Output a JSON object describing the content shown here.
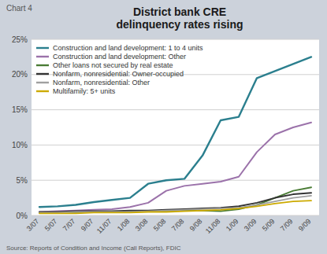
{
  "chart_data": {
    "type": "line",
    "title": "District bank CRE\ndelinquency rates rising",
    "annotations": [
      "Chart 4",
      "Source: Reports of Condition and Income (Call Reports), FDIC"
    ],
    "categories": [
      "3/07",
      "5/07",
      "7/07",
      "9/07",
      "11/07",
      "1/08",
      "3/08",
      "5/08",
      "7/08",
      "9/08",
      "11/08",
      "1/09",
      "3/09",
      "5/09",
      "7/09",
      "9/09"
    ],
    "series": [
      {
        "name": "Construction and land development: 1 to 4 units",
        "color": "#2b7f8e",
        "values": [
          1.2,
          1.3,
          1.5,
          1.9,
          2.2,
          2.5,
          4.5,
          5.0,
          5.2,
          8.5,
          13.5,
          14.0,
          19.5,
          20.5,
          21.5,
          22.5
        ]
      },
      {
        "name": "Construction and land development: Other",
        "color": "#9b72aa",
        "values": [
          0.5,
          0.6,
          0.7,
          0.8,
          0.9,
          1.2,
          1.8,
          3.5,
          4.2,
          4.5,
          4.8,
          5.5,
          9.0,
          11.5,
          12.5,
          13.2
        ]
      },
      {
        "name": "Other loans not secured by real estate",
        "color": "#4a7c35",
        "values": [
          0.4,
          0.4,
          0.4,
          0.5,
          0.5,
          0.5,
          0.6,
          0.7,
          0.7,
          0.7,
          0.6,
          0.9,
          1.5,
          2.5,
          3.5,
          4.0
        ]
      },
      {
        "name": "Nonfarm, nonresidential: Owner-occupied",
        "color": "#333333",
        "values": [
          0.5,
          0.5,
          0.6,
          0.6,
          0.6,
          0.7,
          0.7,
          0.8,
          0.9,
          1.0,
          1.1,
          1.3,
          1.8,
          2.5,
          3.0,
          3.2
        ]
      },
      {
        "name": "Nonfarm, nonresidential: Other",
        "color": "#a0a0a0",
        "values": [
          0.4,
          0.4,
          0.5,
          0.5,
          0.5,
          0.5,
          0.6,
          0.7,
          0.8,
          0.9,
          1.0,
          1.1,
          1.5,
          2.0,
          2.5,
          2.8
        ]
      },
      {
        "name": "Multifamily: 5+ units",
        "color": "#ccaa00",
        "values": [
          0.3,
          0.3,
          0.3,
          0.4,
          0.4,
          0.4,
          0.5,
          0.5,
          0.6,
          0.7,
          0.8,
          1.0,
          1.3,
          1.7,
          2.0,
          2.1
        ]
      }
    ],
    "ylim": [
      0,
      25
    ],
    "yticks": [
      {
        "value": 0,
        "label": "0%"
      },
      {
        "value": 5,
        "label": "5%"
      },
      {
        "value": 10,
        "label": "10%"
      },
      {
        "value": 15,
        "label": "15%"
      },
      {
        "value": 20,
        "label": "20%"
      },
      {
        "value": 25,
        "label": "25%"
      }
    ],
    "grid": true,
    "legend": "upper left"
  }
}
